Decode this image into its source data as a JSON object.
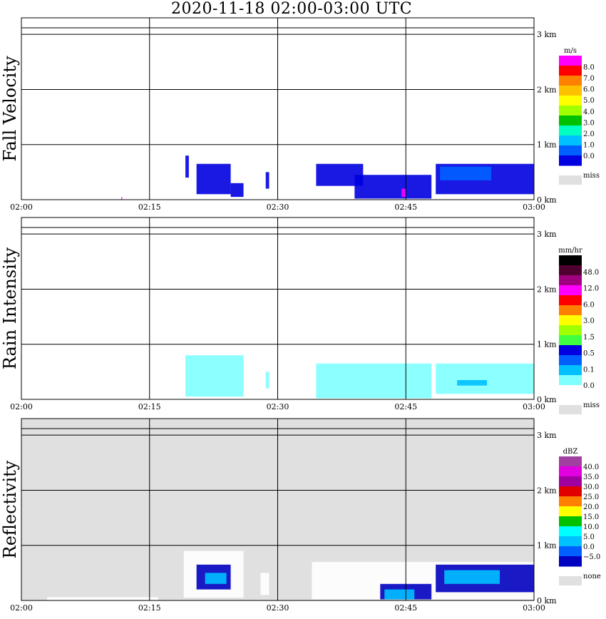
{
  "title": "2020-11-18   02:00-03:00 UTC",
  "x_ticks": [
    "02:00",
    "02:15",
    "02:30",
    "02:45",
    "03:00"
  ],
  "y_ticks": [
    "1 km",
    "2 km",
    "3 km",
    "0 km"
  ],
  "colors": {
    "panel_bg_reflectivity": "#e0e0e0",
    "missing": "#e0e0e0",
    "grid": "#000000"
  },
  "chart_data": [
    {
      "type": "heatmap",
      "ylabel": "Fall Velocity",
      "xlim_min": [
        0,
        60
      ],
      "ylim_km": [
        0,
        3.3
      ],
      "legend": {
        "unit": "m/s",
        "ticks": [
          "8.0",
          "7.0",
          "6.0",
          "5.0",
          "4.0",
          "3.0",
          "2.0",
          "1.0",
          "0.0"
        ],
        "colors": [
          "#ff00ff",
          "#ff0000",
          "#ff8000",
          "#ffc000",
          "#ffff00",
          "#a0ff00",
          "#00c000",
          "#00ffc0",
          "#00c0ff",
          "#0060ff",
          "#0000e0"
        ],
        "missing_label": "miss"
      },
      "echoes": [
        {
          "x": [
            19.2,
            19.6
          ],
          "y": [
            0.4,
            0.8
          ],
          "value": "1.0",
          "color": "#0000e0"
        },
        {
          "x": [
            20.5,
            24.5
          ],
          "y": [
            0.1,
            0.65
          ],
          "value": "1.0",
          "color": "#0000e0"
        },
        {
          "x": [
            24.5,
            26.0
          ],
          "y": [
            0.05,
            0.3
          ],
          "value": "1.0",
          "color": "#0000e0"
        },
        {
          "x": [
            28.6,
            29.0
          ],
          "y": [
            0.2,
            0.5
          ],
          "value": "1.0",
          "color": "#0000e0"
        },
        {
          "x": [
            34.5,
            40.0
          ],
          "y": [
            0.25,
            0.65
          ],
          "value": "1.0",
          "color": "#0000e0"
        },
        {
          "x": [
            39.0,
            48.0
          ],
          "y": [
            0.02,
            0.45
          ],
          "value": "1.0",
          "color": "#0000e0"
        },
        {
          "x": [
            48.5,
            60.0
          ],
          "y": [
            0.1,
            0.65
          ],
          "value": "1.0",
          "color": "#0000e0"
        },
        {
          "x": [
            49.0,
            55.0
          ],
          "y": [
            0.35,
            0.6
          ],
          "value": "2.0",
          "color": "#0060ff"
        },
        {
          "x": [
            44.5,
            45.0
          ],
          "y": [
            0.05,
            0.2
          ],
          "value": "8.0",
          "color": "#ff00ff"
        },
        {
          "x": [
            11.7,
            11.8
          ],
          "y": [
            0.0,
            0.05
          ],
          "value": "8.0",
          "color": "#ff00ff"
        }
      ]
    },
    {
      "type": "heatmap",
      "ylabel": "Rain Intensity",
      "xlim_min": [
        0,
        60
      ],
      "ylim_km": [
        0,
        3.3
      ],
      "legend": {
        "unit": "mm/hr",
        "ticks": [
          "48.0",
          "12.0",
          "6.0",
          "3.0",
          "1.5",
          "0.5",
          "0.1",
          "0.0"
        ],
        "colors": [
          "#000000",
          "#500030",
          "#a00080",
          "#ff00ff",
          "#ff0000",
          "#ff8000",
          "#ffff00",
          "#a0ff00",
          "#40ff40",
          "#0000e0",
          "#0060ff",
          "#00c0ff",
          "#80ffff",
          "#ffffff"
        ],
        "missing_label": "miss"
      },
      "echoes": [
        {
          "x": [
            19.2,
            26.0
          ],
          "y": [
            0.05,
            0.8
          ],
          "value": "0.1",
          "color": "#80ffff"
        },
        {
          "x": [
            28.6,
            29.0
          ],
          "y": [
            0.2,
            0.5
          ],
          "value": "0.1",
          "color": "#80ffff"
        },
        {
          "x": [
            34.5,
            48.0
          ],
          "y": [
            0.02,
            0.65
          ],
          "value": "0.1",
          "color": "#80ffff"
        },
        {
          "x": [
            48.5,
            60.0
          ],
          "y": [
            0.1,
            0.65
          ],
          "value": "0.1",
          "color": "#80ffff"
        },
        {
          "x": [
            51.0,
            54.5
          ],
          "y": [
            0.25,
            0.35
          ],
          "value": "0.5",
          "color": "#00c0ff"
        }
      ]
    },
    {
      "type": "heatmap",
      "ylabel": "Reflectivity",
      "xlim_min": [
        0,
        60
      ],
      "ylim_km": [
        0,
        3.3
      ],
      "legend": {
        "unit": "dBZ",
        "ticks": [
          "40.0",
          "35.0",
          "30.0",
          "25.0",
          "20.0",
          "15.0",
          "10.0",
          "5.0",
          "0.0",
          "−5.0"
        ],
        "colors": [
          "#a040a0",
          "#e000e0",
          "#a000a0",
          "#e00000",
          "#ff8000",
          "#ffff00",
          "#00c000",
          "#00ffff",
          "#00c0ff",
          "#0060ff",
          "#0000c0"
        ],
        "missing_label": "none"
      },
      "echoes": [
        {
          "x": [
            19.0,
            26.0
          ],
          "y": [
            0.05,
            0.9
          ],
          "value": "−5.0",
          "color": "#ffffff"
        },
        {
          "x": [
            20.5,
            24.5
          ],
          "y": [
            0.2,
            0.65
          ],
          "value": "0.0",
          "color": "#0000c0"
        },
        {
          "x": [
            21.5,
            24.0
          ],
          "y": [
            0.3,
            0.5
          ],
          "value": "5.0",
          "color": "#00c0ff"
        },
        {
          "x": [
            28.0,
            29.0
          ],
          "y": [
            0.1,
            0.5
          ],
          "value": "−5.0",
          "color": "#ffffff"
        },
        {
          "x": [
            34.0,
            60.0
          ],
          "y": [
            0.02,
            0.7
          ],
          "value": "−5.0",
          "color": "#ffffff"
        },
        {
          "x": [
            42.0,
            48.0
          ],
          "y": [
            0.02,
            0.3
          ],
          "value": "0.0",
          "color": "#0000c0"
        },
        {
          "x": [
            42.5,
            46.0
          ],
          "y": [
            0.02,
            0.2
          ],
          "value": "5.0",
          "color": "#00c0ff"
        },
        {
          "x": [
            48.5,
            60.0
          ],
          "y": [
            0.15,
            0.65
          ],
          "value": "0.0",
          "color": "#0000c0"
        },
        {
          "x": [
            49.5,
            56.0
          ],
          "y": [
            0.3,
            0.55
          ],
          "value": "5.0",
          "color": "#00c0ff"
        },
        {
          "x": [
            3.0,
            16.0
          ],
          "y": [
            0.0,
            0.06
          ],
          "value": "−5.0",
          "color": "#ffffff"
        }
      ]
    }
  ]
}
